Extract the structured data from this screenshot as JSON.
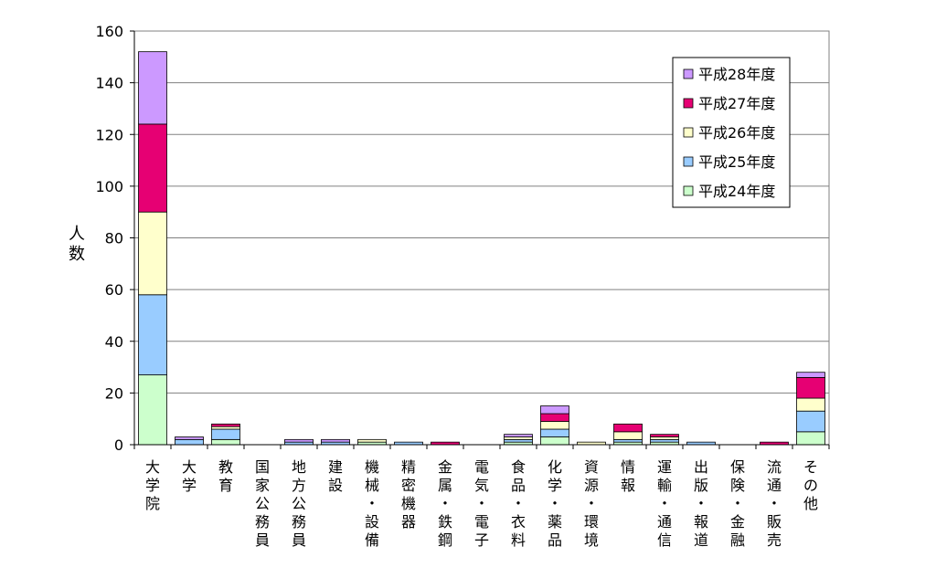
{
  "chart_data": {
    "type": "bar",
    "stacked": true,
    "title": "",
    "xlabel": "",
    "ylabel": "人数",
    "ylim": [
      0,
      160
    ],
    "yticks": [
      0,
      20,
      40,
      60,
      80,
      100,
      120,
      140,
      160
    ],
    "grid": true,
    "legend_position": "top-right",
    "categories": [
      "大学院",
      "大学",
      "教育",
      "国家公務員",
      "地方公務員",
      "建設",
      "機械・設備",
      "精密機器",
      "金属・鉄鋼",
      "電気・電子",
      "食品・衣料",
      "化学・薬品",
      "資源・環境",
      "情報",
      "運輸・通信",
      "出版・報道",
      "保険・金融",
      "流通・販売",
      "その他"
    ],
    "series": [
      {
        "name": "平成24年度",
        "color": "#ccffcc",
        "values": [
          27,
          0,
          2,
          0,
          0,
          0,
          1,
          0,
          0,
          0,
          1,
          3,
          0,
          1,
          1,
          0,
          0,
          0,
          5
        ]
      },
      {
        "name": "平成25年度",
        "color": "#99ccff",
        "values": [
          31,
          2,
          4,
          0,
          1,
          1,
          0,
          1,
          0,
          0,
          1,
          3,
          0,
          1,
          1,
          1,
          0,
          0,
          8
        ]
      },
      {
        "name": "平成26年度",
        "color": "#ffffcc",
        "values": [
          32,
          0,
          1,
          0,
          0,
          0,
          1,
          0,
          0,
          0,
          1,
          3,
          1,
          3,
          1,
          0,
          0,
          0,
          5
        ]
      },
      {
        "name": "平成27年度",
        "color": "#e60073",
        "values": [
          34,
          0,
          1,
          0,
          0,
          0,
          0,
          0,
          1,
          0,
          0,
          3,
          0,
          3,
          1,
          0,
          0,
          1,
          8
        ]
      },
      {
        "name": "平成28年度",
        "color": "#cc99ff",
        "values": [
          28,
          1,
          0,
          0,
          1,
          1,
          0,
          0,
          0,
          0,
          1,
          3,
          0,
          0,
          0,
          0,
          0,
          0,
          2
        ]
      }
    ]
  }
}
